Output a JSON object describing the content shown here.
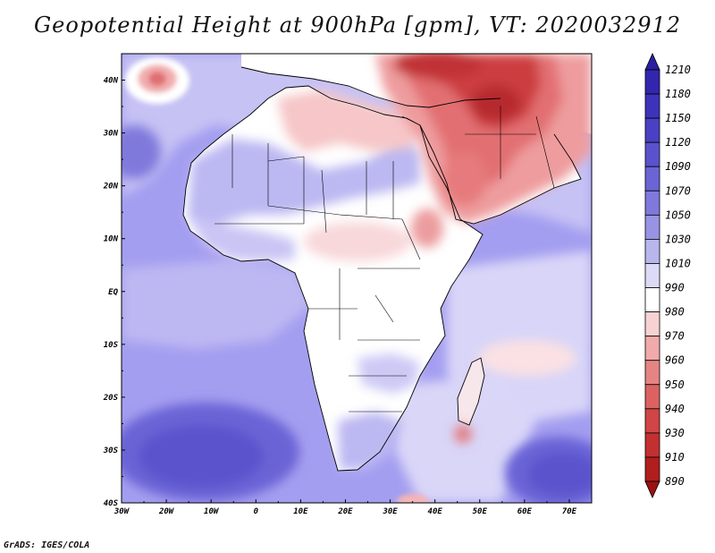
{
  "title": "Geopotential Height at 900hPa [gpm], VT: 2020032912",
  "credit": "GrADS: IGES/COLA",
  "map": {
    "lat_labels": [
      "40N",
      "30N",
      "20N",
      "10N",
      "EQ",
      "10S",
      "20S",
      "30S",
      "40S"
    ],
    "lon_labels": [
      "30W",
      "20W",
      "10W",
      "0",
      "10E",
      "20E",
      "30E",
      "40E",
      "50E",
      "60E",
      "70E"
    ],
    "lat_range": [
      -40,
      45
    ],
    "lon_range": [
      -30,
      75
    ],
    "ocean_color": "#9f99ee",
    "land_color": "#ffffff"
  },
  "colorbar": {
    "levels": [
      "1210",
      "1180",
      "1150",
      "1120",
      "1090",
      "1070",
      "1050",
      "1030",
      "1010",
      "990",
      "980",
      "970",
      "960",
      "950",
      "940",
      "930",
      "910",
      "890"
    ],
    "colors": [
      "#2b1fa0",
      "#3226ae",
      "#3d33bb",
      "#4a40c4",
      "#5a52cc",
      "#6b64d4",
      "#7f79dc",
      "#9893e4",
      "#b9b6ee",
      "#dcdaf6",
      "#ffffff",
      "#f8d2d2",
      "#f0aaaa",
      "#e68484",
      "#dc6262",
      "#d04545",
      "#c23030",
      "#b01e1e",
      "#9c1212"
    ]
  }
}
